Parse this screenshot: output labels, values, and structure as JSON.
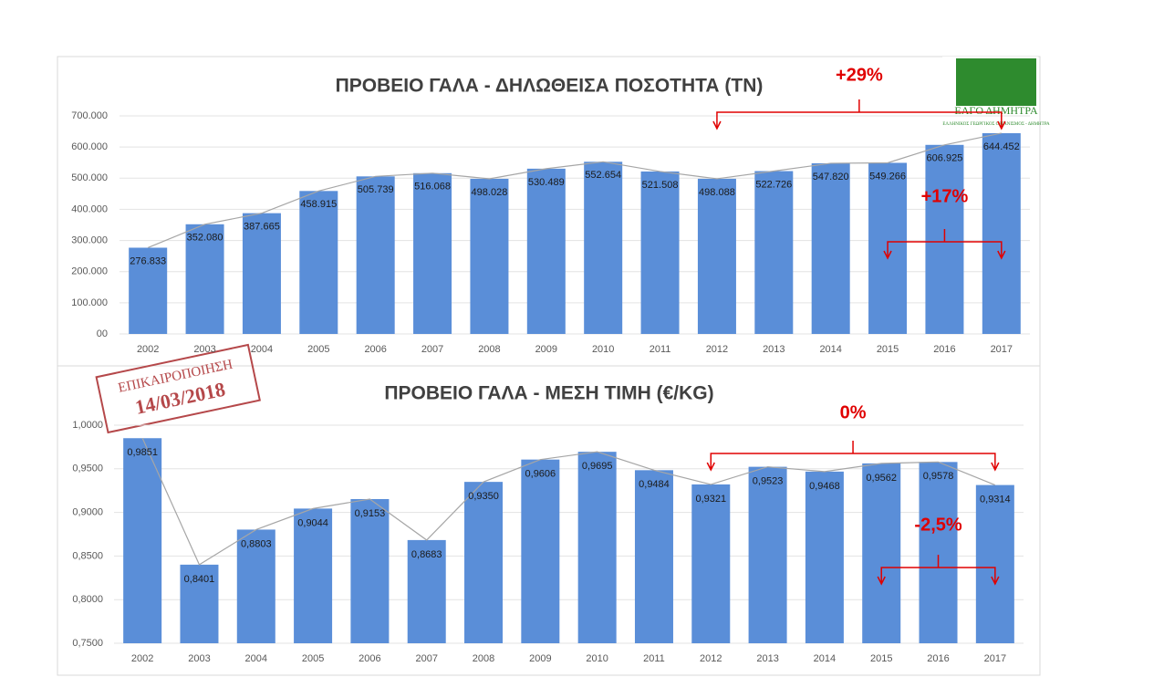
{
  "chart_data": [
    {
      "type": "bar",
      "title": "ΠΡΟΒΕΙΟ ΓΑΛΑ - ΔΗΛΩΘΕΙΣΑ ΠΟΣΟΤΗΤΑ (ΤΝ)",
      "categories": [
        "2002",
        "2003",
        "2004",
        "2005",
        "2006",
        "2007",
        "2008",
        "2009",
        "2010",
        "2011",
        "2012",
        "2013",
        "2014",
        "2015",
        "2016",
        "2017"
      ],
      "values": [
        276833,
        352080,
        387665,
        458915,
        505739,
        516068,
        498028,
        530489,
        552654,
        521508,
        498088,
        522726,
        547820,
        549266,
        606925,
        644452
      ],
      "value_labels": [
        "276.833",
        "352.080",
        "387.665",
        "458.915",
        "505.739",
        "516.068",
        "498.028",
        "530.489",
        "552.654",
        "521.508",
        "498.088",
        "522.726",
        "547.820",
        "549.266",
        "606.925",
        "644.452"
      ],
      "color": "#5a8ed8",
      "line_color": "#a6a6a6",
      "ylim": [
        0,
        700000
      ],
      "yticks": [
        {
          "value": 0,
          "label": "00"
        },
        {
          "value": 100000,
          "label": "100.000"
        },
        {
          "value": 200000,
          "label": "200.000"
        },
        {
          "value": 300000,
          "label": "300.000"
        },
        {
          "value": 400000,
          "label": "400.000"
        },
        {
          "value": 500000,
          "label": "500.000"
        },
        {
          "value": 600000,
          "label": "600.000"
        },
        {
          "value": 700000,
          "label": "700.000"
        }
      ],
      "grid": true,
      "annotations": [
        {
          "text": "+29%",
          "from": "2012",
          "to": "2017"
        },
        {
          "text": "+17%",
          "from": "2015",
          "to": "2017"
        }
      ],
      "annotation_color": "#e00000"
    },
    {
      "type": "bar",
      "title": "ΠΡΟΒΕΙΟ ΓΑΛΑ - ΜΕΣΗ ΤΙΜΗ (€/KG)",
      "categories": [
        "2002",
        "2003",
        "2004",
        "2005",
        "2006",
        "2007",
        "2008",
        "2009",
        "2010",
        "2011",
        "2012",
        "2013",
        "2014",
        "2015",
        "2016",
        "2017"
      ],
      "values": [
        0.9851,
        0.8401,
        0.8803,
        0.9044,
        0.9153,
        0.8683,
        0.935,
        0.9606,
        0.9695,
        0.9484,
        0.9321,
        0.9523,
        0.9468,
        0.9562,
        0.9578,
        0.9314
      ],
      "value_labels": [
        "0,9851",
        "0,8401",
        "0,8803",
        "0,9044",
        "0,9153",
        "0,8683",
        "0,9350",
        "0,9606",
        "0,9695",
        "0,9484",
        "0,9321",
        "0,9523",
        "0,9468",
        "0,9562",
        "0,9578",
        "0,9314"
      ],
      "color": "#5a8ed8",
      "line_color": "#a6a6a6",
      "ylim": [
        0.75,
        1.0
      ],
      "yticks": [
        {
          "value": 0.75,
          "label": "0,7500"
        },
        {
          "value": 0.8,
          "label": "0,8000"
        },
        {
          "value": 0.85,
          "label": "0,8500"
        },
        {
          "value": 0.9,
          "label": "0,9000"
        },
        {
          "value": 0.95,
          "label": "0,9500"
        },
        {
          "value": 1.0,
          "label": "1,0000"
        }
      ],
      "grid": true,
      "annotations": [
        {
          "text": "0%",
          "from": "2012",
          "to": "2017"
        },
        {
          "text": "-2,5%",
          "from": "2015",
          "to": "2017"
        }
      ],
      "annotation_color": "#e00000"
    }
  ],
  "stamp": {
    "label": "ΕΠΙΚΑΙΡΟΠΟΙΗΣΗ",
    "date": "14/03/2018"
  },
  "logo": {
    "name": "ΕΛΓΟ ΔΗΜΗΤΡΑ",
    "subtitle": "ΕΛΛΗΝΙΚΟΣ ΓΕΩΡΓΙΚΟΣ ΟΡΓΑΝΙΣΜΟΣ - ΔΗΜΗΤΡΑ"
  }
}
